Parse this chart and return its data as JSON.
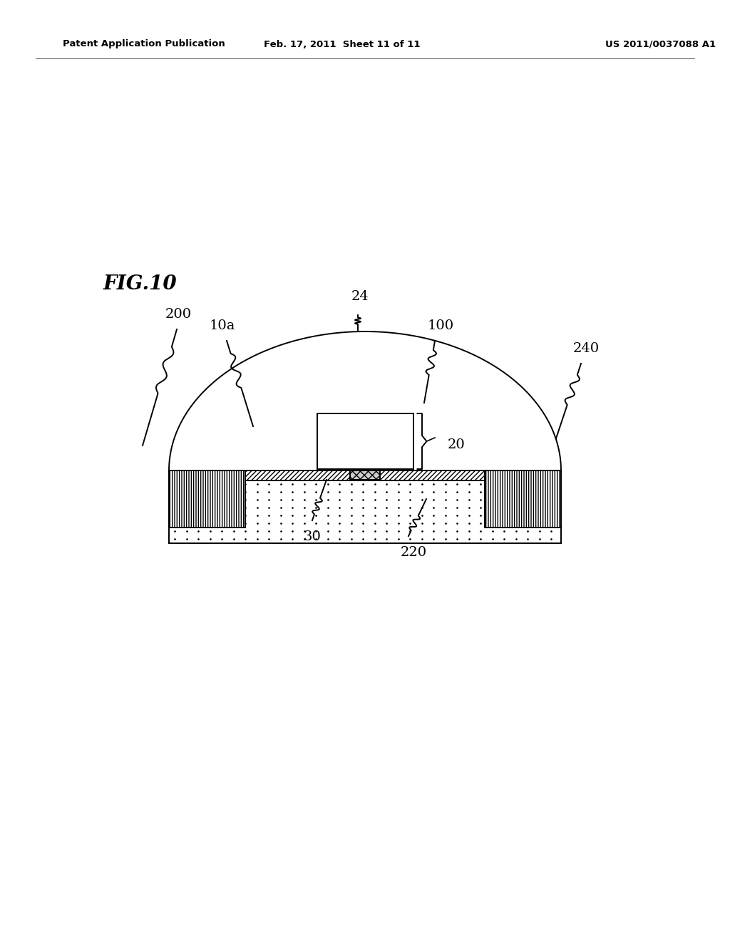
{
  "bg_color": "#ffffff",
  "fig_label": "FIG.10",
  "header_left": "Patent Application Publication",
  "header_mid": "Feb. 17, 2011  Sheet 11 of 11",
  "header_right": "US 2011/0037088 A1",
  "figw": 10.24,
  "figh": 13.2,
  "dpi": 100,
  "lw": 1.4
}
